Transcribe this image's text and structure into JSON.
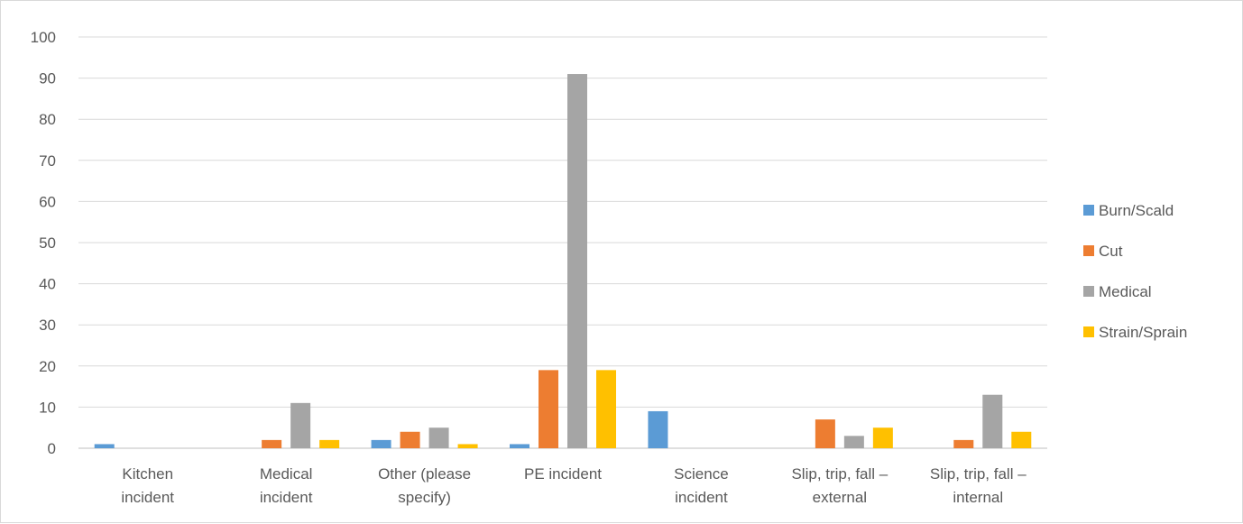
{
  "chart_data": {
    "type": "bar",
    "categories": [
      [
        "Kitchen",
        "incident"
      ],
      [
        "Medical",
        "incident"
      ],
      [
        "Other (please",
        "specify)"
      ],
      [
        "PE incident"
      ],
      [
        "Science",
        "incident"
      ],
      [
        "Slip, trip, fall –",
        "external"
      ],
      [
        "Slip, trip, fall –",
        "internal"
      ]
    ],
    "series": [
      {
        "name": "Burn/Scald",
        "color": "#5b9bd5",
        "values": [
          1,
          0,
          2,
          1,
          9,
          0,
          0
        ]
      },
      {
        "name": "Cut",
        "color": "#ed7d31",
        "values": [
          0,
          2,
          4,
          19,
          0,
          7,
          2
        ]
      },
      {
        "name": "Medical",
        "color": "#a5a5a5",
        "values": [
          0,
          11,
          5,
          91,
          0,
          3,
          13
        ]
      },
      {
        "name": "Strain/Sprain",
        "color": "#ffc000",
        "values": [
          0,
          2,
          1,
          19,
          0,
          5,
          4
        ]
      }
    ],
    "ylim": [
      0,
      100
    ],
    "yticks": [
      "0",
      "10",
      "20",
      "30",
      "40",
      "50",
      "60",
      "70",
      "80",
      "90",
      "100"
    ],
    "grid": true,
    "legend": "right",
    "title": "",
    "xlabel": "",
    "ylabel": ""
  }
}
